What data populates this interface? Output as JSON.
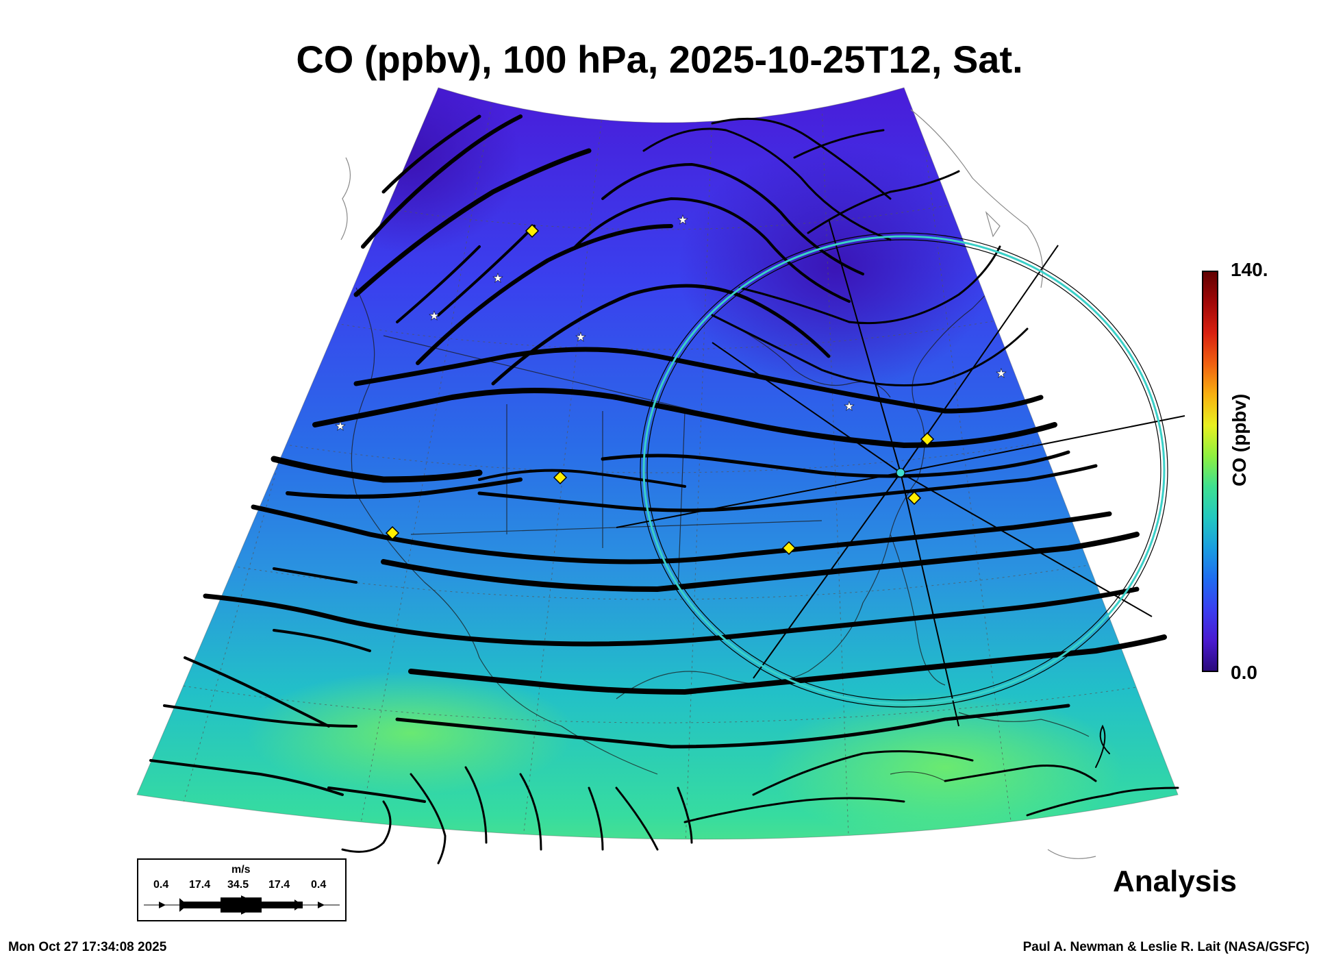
{
  "title": "CO (ppbv), 100 hPa, 2025-10-25T12, Sat.",
  "colorbar": {
    "max_label": "140.",
    "min_label": "0.0",
    "title": "CO (ppbv)",
    "colors": [
      "#2a0a7a",
      "#4a1ad0",
      "#3a3ef0",
      "#1f6cf0",
      "#1a9ee0",
      "#22c8c0",
      "#3ee090",
      "#8ef040",
      "#e8f020",
      "#f8b010",
      "#f06010",
      "#d82010",
      "#a00808",
      "#600000"
    ]
  },
  "legend": {
    "unit": "m/s",
    "speeds": [
      "0.4",
      "17.4",
      "34.5",
      "17.4",
      "0.4"
    ]
  },
  "footer": {
    "analysis": "Analysis",
    "timestamp": "Mon Oct 27 17:34:08 2025",
    "credit": "Paul A. Newman & Leslie R. Lait (NASA/GSFC)"
  },
  "map": {
    "field_colors": {
      "north": "#4a1ad8",
      "mid": "#2a78e8",
      "south": "#2ad8a8",
      "far_south": "#60e878"
    },
    "marker_colors": {
      "diamond": "#ffee00",
      "star": "#ffffff",
      "circle": "#40d8d0"
    }
  }
}
